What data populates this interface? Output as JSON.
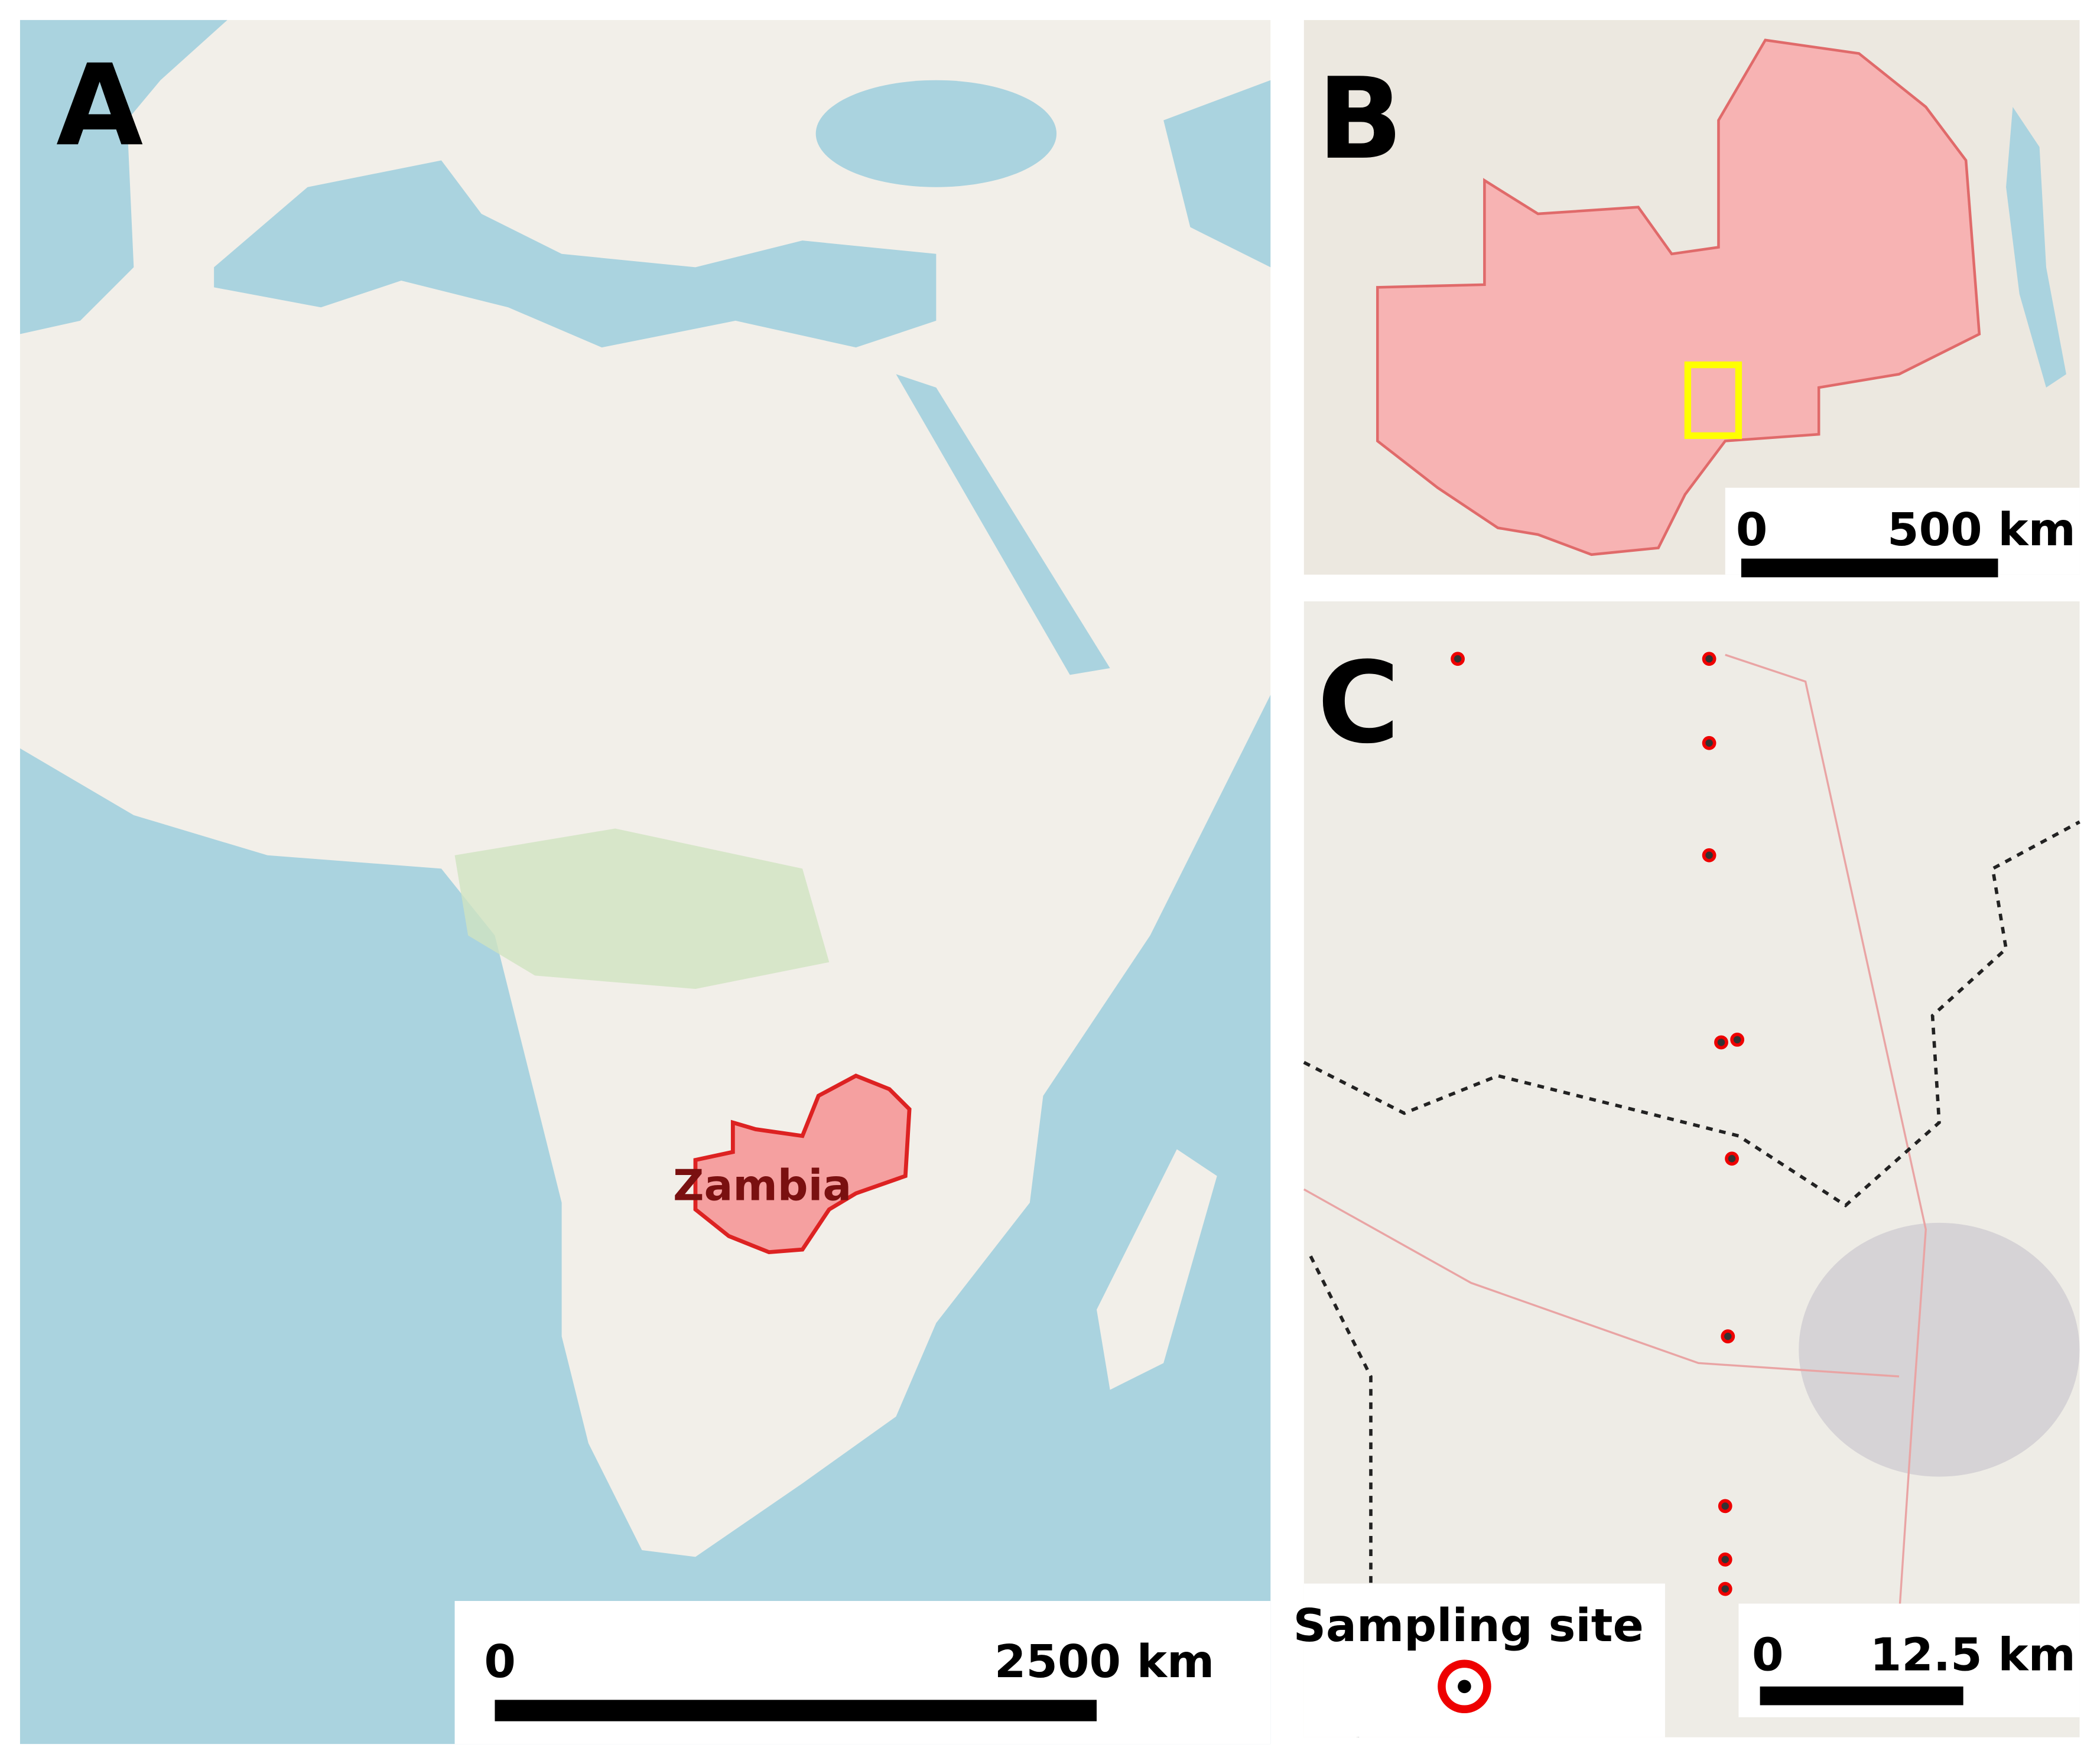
{
  "panels": [
    {
      "label": "A",
      "map_label": "Zambia",
      "scale": {
        "start": "0",
        "end": "2500 km"
      }
    },
    {
      "label": "B",
      "scale": {
        "start": "0",
        "end": "500 km"
      }
    },
    {
      "label": "C",
      "scale": {
        "start": "0",
        "end": "12.5 km"
      },
      "legend": "Sampling site"
    }
  ]
}
